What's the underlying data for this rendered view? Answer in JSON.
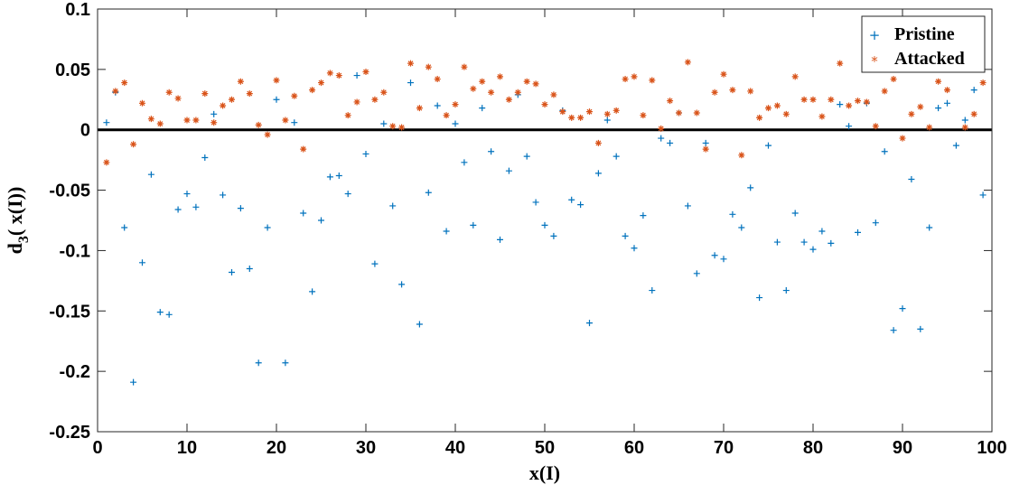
{
  "chart_data": {
    "type": "scatter",
    "xlabel": "x(I)",
    "ylabel_main": "d",
    "ylabel_sub": "3",
    "ylabel_rest": "( x(I))",
    "xlim": [
      0,
      100
    ],
    "ylim": [
      -0.25,
      0.1
    ],
    "xticks": [
      "0",
      "10",
      "20",
      "30",
      "40",
      "50",
      "60",
      "70",
      "80",
      "90",
      "100"
    ],
    "yticks": [
      "0.1",
      "0.05",
      "0",
      "-0.05",
      "-0.1",
      "-0.15",
      "-0.2",
      "-0.25"
    ],
    "grid": false,
    "legend_position": "top-right",
    "reference_line": 0,
    "series": [
      {
        "name": "Pristine",
        "marker": "+",
        "color": "#0072BD",
        "x": [
          1,
          2,
          3,
          4,
          5,
          6,
          7,
          8,
          9,
          10,
          11,
          12,
          13,
          14,
          15,
          16,
          17,
          18,
          19,
          20,
          21,
          22,
          23,
          24,
          25,
          26,
          27,
          28,
          29,
          30,
          31,
          32,
          33,
          34,
          35,
          36,
          37,
          38,
          39,
          40,
          41,
          42,
          43,
          44,
          45,
          46,
          47,
          48,
          49,
          50,
          51,
          52,
          53,
          54,
          55,
          56,
          57,
          58,
          59,
          60,
          61,
          62,
          63,
          64,
          65,
          66,
          67,
          68,
          69,
          70,
          71,
          72,
          73,
          74,
          75,
          76,
          77,
          78,
          79,
          80,
          81,
          82,
          83,
          84,
          85,
          86,
          87,
          88,
          89,
          90,
          91,
          92,
          93,
          94,
          95,
          96,
          97,
          98,
          99
        ],
        "y": [
          0.006,
          0.031,
          -0.081,
          -0.209,
          -0.11,
          -0.037,
          -0.151,
          -0.153,
          -0.066,
          -0.053,
          -0.064,
          -0.023,
          0.013,
          -0.054,
          -0.118,
          -0.065,
          -0.115,
          -0.193,
          -0.081,
          0.025,
          -0.193,
          0.006,
          -0.069,
          -0.134,
          -0.075,
          -0.039,
          -0.038,
          -0.053,
          0.045,
          -0.02,
          -0.111,
          0.005,
          -0.063,
          -0.128,
          0.039,
          -0.161,
          -0.052,
          0.02,
          -0.084,
          0.005,
          -0.027,
          -0.079,
          0.018,
          -0.018,
          -0.091,
          -0.034,
          0.029,
          -0.022,
          -0.06,
          -0.079,
          -0.088,
          0.016,
          -0.058,
          -0.062,
          -0.16,
          -0.036,
          0.008,
          -0.022,
          -0.088,
          -0.098,
          -0.071,
          -0.133,
          -0.007,
          -0.011,
          0.014,
          -0.063,
          -0.119,
          -0.011,
          -0.104,
          -0.107,
          -0.07,
          -0.081,
          -0.048,
          -0.139,
          -0.013,
          -0.093,
          -0.133,
          -0.069,
          -0.093,
          -0.099,
          -0.084,
          -0.094,
          0.021,
          0.003,
          -0.085,
          0.022,
          -0.077,
          -0.018,
          -0.166,
          -0.148,
          -0.041,
          -0.165,
          -0.081,
          0.018,
          0.022,
          -0.013,
          0.008,
          0.033,
          -0.054
        ]
      },
      {
        "name": "Attacked",
        "marker": "*",
        "color": "#D95319",
        "x": [
          1,
          2,
          3,
          4,
          5,
          6,
          7,
          8,
          9,
          10,
          11,
          12,
          13,
          14,
          15,
          16,
          17,
          18,
          19,
          20,
          21,
          22,
          23,
          24,
          25,
          26,
          27,
          28,
          29,
          30,
          31,
          32,
          33,
          34,
          35,
          36,
          37,
          38,
          39,
          40,
          41,
          42,
          43,
          44,
          45,
          46,
          47,
          48,
          49,
          50,
          51,
          52,
          53,
          54,
          55,
          56,
          57,
          58,
          59,
          60,
          61,
          62,
          63,
          64,
          65,
          66,
          67,
          68,
          69,
          70,
          71,
          72,
          73,
          74,
          75,
          76,
          77,
          78,
          79,
          80,
          81,
          82,
          83,
          84,
          85,
          86,
          87,
          88,
          89,
          90,
          91,
          92,
          93,
          94,
          95,
          96,
          97,
          98,
          99
        ],
        "y": [
          -0.027,
          0.032,
          0.039,
          -0.012,
          0.022,
          0.009,
          0.005,
          0.031,
          0.026,
          0.008,
          0.008,
          0.03,
          0.006,
          0.02,
          0.025,
          0.04,
          0.03,
          0.004,
          -0.004,
          0.041,
          0.008,
          0.028,
          -0.016,
          0.033,
          0.039,
          0.047,
          0.045,
          0.012,
          0.023,
          0.048,
          0.025,
          0.031,
          0.003,
          0.002,
          0.055,
          0.018,
          0.052,
          0.042,
          0.012,
          0.021,
          0.052,
          0.034,
          0.04,
          0.031,
          0.044,
          0.025,
          0.031,
          0.04,
          0.038,
          0.021,
          0.029,
          0.015,
          0.01,
          0.01,
          0.015,
          -0.011,
          0.013,
          0.016,
          0.042,
          0.044,
          0.012,
          0.041,
          0.001,
          0.024,
          0.014,
          0.056,
          0.014,
          -0.016,
          0.031,
          0.046,
          0.033,
          -0.021,
          0.032,
          0.01,
          0.018,
          0.02,
          0.013,
          0.044,
          0.025,
          0.025,
          0.011,
          0.025,
          0.055,
          0.02,
          0.024,
          0.023,
          0.003,
          0.032,
          0.042,
          -0.007,
          0.013,
          0.019,
          0.002,
          0.04,
          0.033,
          0.052,
          0.002,
          0.013,
          0.039
        ]
      }
    ]
  }
}
